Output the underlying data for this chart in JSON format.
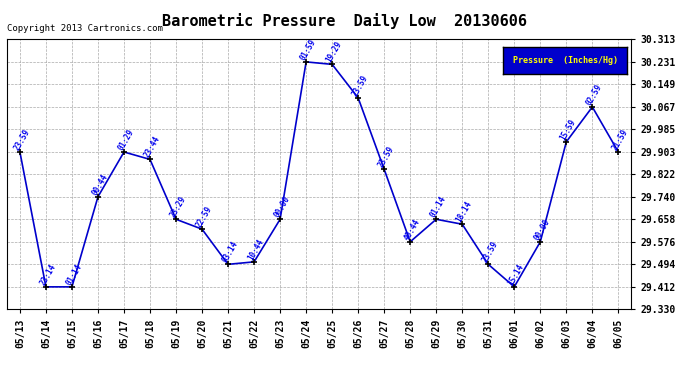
{
  "title": "Barometric Pressure  Daily Low  20130606",
  "copyright": "Copyright 2013 Cartronics.com",
  "legend_label": "Pressure  (Inches/Hg)",
  "x_labels": [
    "05/13",
    "05/14",
    "05/15",
    "05/16",
    "05/17",
    "05/18",
    "05/19",
    "05/20",
    "05/21",
    "05/22",
    "05/23",
    "05/24",
    "05/25",
    "05/26",
    "05/27",
    "05/28",
    "05/29",
    "05/30",
    "05/31",
    "06/01",
    "06/02",
    "06/03",
    "06/04",
    "06/05"
  ],
  "y_values": [
    29.903,
    29.412,
    29.412,
    29.74,
    29.903,
    29.876,
    29.658,
    29.622,
    29.494,
    29.503,
    29.658,
    30.231,
    30.222,
    30.1,
    29.84,
    29.576,
    29.658,
    29.64,
    29.494,
    29.412,
    29.576,
    29.94,
    30.067,
    29.903
  ],
  "point_labels": [
    "23:59",
    "23:14",
    "01:14",
    "00:44",
    "01:29",
    "23:44",
    "23:29",
    "22:59",
    "03:14",
    "10:44",
    "00:00",
    "01:59",
    "19:29",
    "23:59",
    "23:59",
    "40:44",
    "01:14",
    "18:14",
    "23:59",
    "15:14",
    "00:00",
    "15:59",
    "02:59",
    "21:59"
  ],
  "ylim_min": 29.33,
  "ylim_max": 30.313,
  "yticks": [
    29.33,
    29.412,
    29.494,
    29.576,
    29.658,
    29.74,
    29.822,
    29.903,
    29.985,
    30.067,
    30.149,
    30.231,
    30.313
  ],
  "line_color": "#0000cc",
  "marker_color": "#000000",
  "background_color": "#ffffff",
  "grid_color": "#aaaaaa",
  "label_color": "#0000ee",
  "legend_bg": "#0000cc",
  "legend_text_color": "#ffff00",
  "title_fontsize": 11,
  "tick_fontsize": 7,
  "label_fontsize": 5.5
}
